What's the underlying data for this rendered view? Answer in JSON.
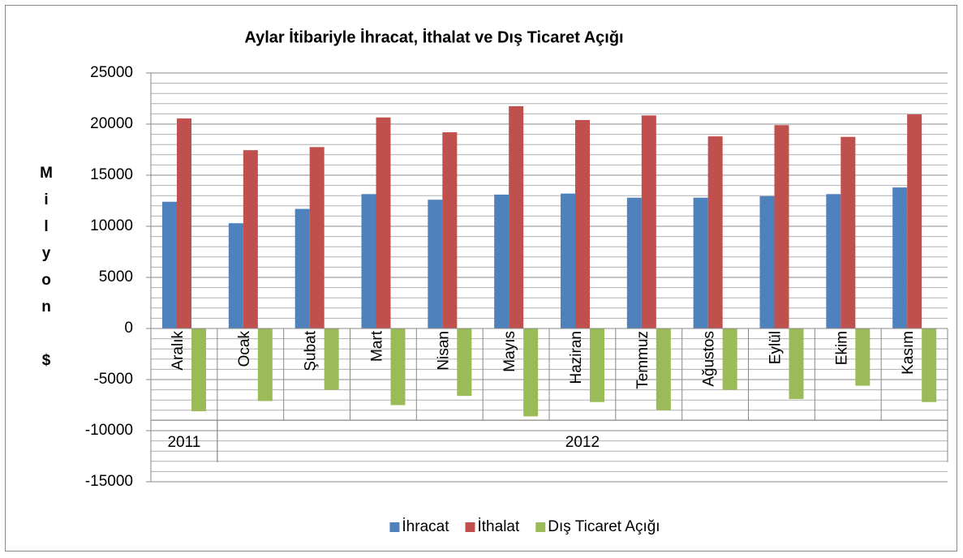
{
  "chart_data": {
    "type": "bar",
    "title": "Aylar İtibariyle İhracat, İthalat ve Dış Ticaret Açığı",
    "y_label": "Milyon $",
    "categories": [
      "Aralık",
      "Ocak",
      "Şubat",
      "Mart",
      "Nisan",
      "Mayıs",
      "Haziran",
      "Temmuz",
      "Ağustos",
      "Eylül",
      "Ekim",
      "Kasım"
    ],
    "groups": [
      {
        "label": "2011",
        "span": 1
      },
      {
        "label": "2012",
        "span": 11
      }
    ],
    "series": [
      {
        "name": "İhracat",
        "color": "#4f81bd",
        "values": [
          12400,
          10300,
          11700,
          13150,
          12600,
          13100,
          13200,
          12800,
          12800,
          12950,
          13150,
          13800
        ]
      },
      {
        "name": "İthalat",
        "color": "#c0504d",
        "values": [
          20550,
          17450,
          17750,
          20650,
          19200,
          21750,
          20400,
          20850,
          18800,
          19900,
          18750,
          20950
        ]
      },
      {
        "name": "Dış Ticaret Açığı",
        "color": "#9bbb59",
        "values": [
          -8100,
          -7100,
          -6000,
          -7500,
          -6600,
          -8600,
          -7200,
          -8000,
          -6000,
          -6900,
          -5600,
          -7200
        ]
      }
    ],
    "ylim": [
      -15000,
      25000
    ],
    "yticks": [
      -15000,
      -10000,
      -5000,
      0,
      5000,
      10000,
      15000,
      20000,
      25000
    ],
    "minor_grid_step": 1000,
    "grid": true,
    "legend": "bottom"
  }
}
